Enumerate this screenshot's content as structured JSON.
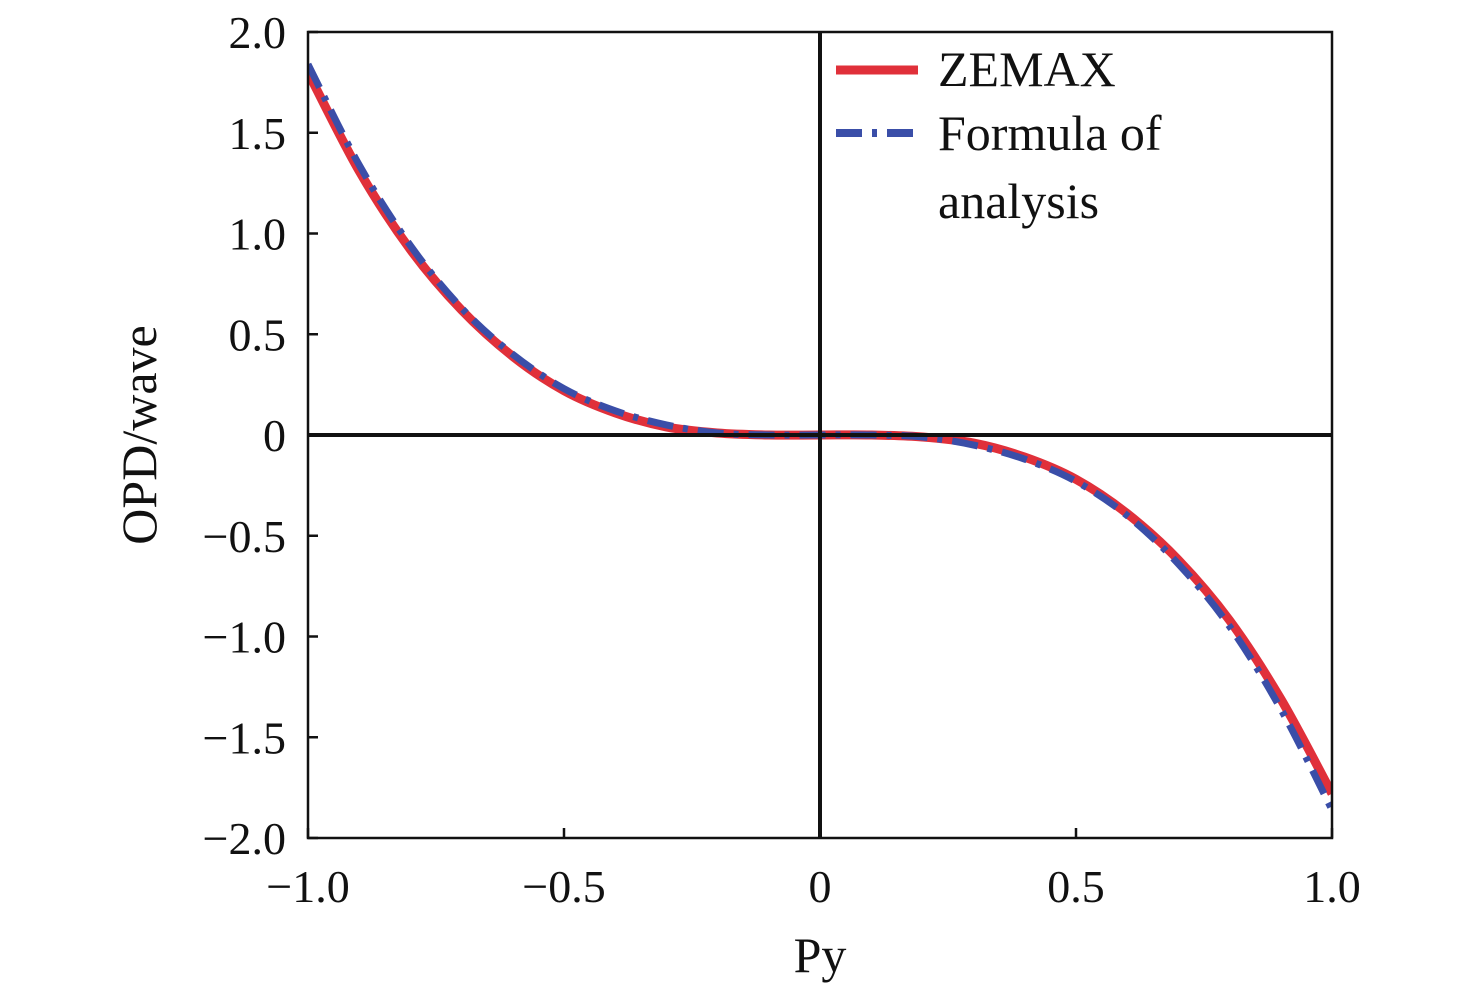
{
  "chart_data": {
    "type": "line",
    "title": "",
    "xlabel": "Py",
    "ylabel": "OPD/wave",
    "xlim": [
      -1.0,
      1.0
    ],
    "ylim": [
      -2.0,
      2.0
    ],
    "x_ticks": [
      -1.0,
      -0.5,
      0,
      0.5,
      1.0
    ],
    "x_tick_labels": [
      "−1.0",
      "−0.5",
      "0",
      "0.5",
      "1.0"
    ],
    "y_ticks": [
      2.0,
      1.5,
      1.0,
      0.5,
      0,
      -0.5,
      -1.0,
      -1.5,
      -2.0
    ],
    "y_tick_labels": [
      "2.0",
      "1.5",
      "1.0",
      "0.5",
      "0",
      "−0.5",
      "−1.0",
      "−1.5",
      "−2.0"
    ],
    "grid": false,
    "reference_lines": [
      "x=0",
      "y=0"
    ],
    "legend": {
      "position": "top-right",
      "entries": [
        "ZEMAX",
        "Formula of analysis"
      ]
    },
    "x": [
      -1.0,
      -0.9,
      -0.8,
      -0.7,
      -0.6,
      -0.5,
      -0.4,
      -0.3,
      -0.2,
      -0.1,
      0.0,
      0.1,
      0.2,
      0.3,
      0.4,
      0.5,
      0.6,
      0.7,
      0.8,
      0.9,
      1.0
    ],
    "series": [
      {
        "name": "ZEMAX",
        "color": "#e0303a",
        "style": "solid",
        "values": [
          1.8,
          1.31,
          0.92,
          0.62,
          0.39,
          0.22,
          0.11,
          0.04,
          0.01,
          0.0,
          0.0,
          0.0,
          -0.01,
          -0.04,
          -0.11,
          -0.22,
          -0.39,
          -0.62,
          -0.92,
          -1.31,
          -1.78
        ]
      },
      {
        "name": "Formula of analysis",
        "color": "#3a4ea8",
        "style": "dash-dot",
        "values": [
          1.84,
          1.34,
          0.94,
          0.63,
          0.4,
          0.23,
          0.12,
          0.05,
          0.01,
          0.0,
          0.0,
          0.0,
          -0.01,
          -0.05,
          -0.12,
          -0.23,
          -0.4,
          -0.64,
          -0.95,
          -1.36,
          -1.86
        ]
      }
    ]
  }
}
